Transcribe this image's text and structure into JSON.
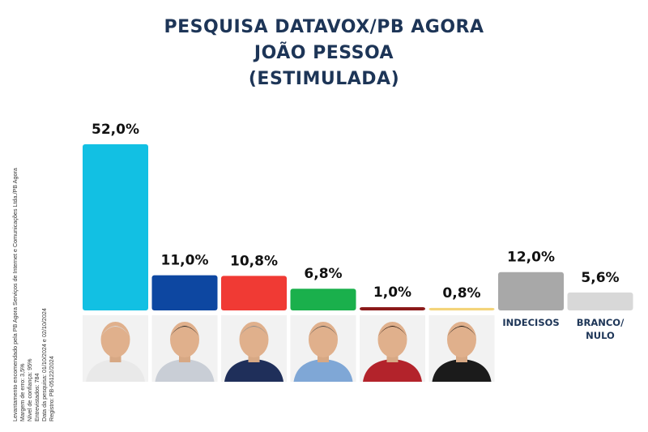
{
  "header": {
    "line1": "PESQUISA DATAVOX/PB AGORA",
    "line2": "JOÃO PESSOA",
    "line3": "(ESTIMULADA)"
  },
  "notes": [
    "Levantamento encomendado pela PB Agora Serviços de Internet e Comunicações Ltda./PB Agora",
    "Margem de erro: 3,5%",
    "Nível de confiança: 95%",
    "Entrevistados: 784",
    "Data da pesquisa: 01/10/2024 e 02/10/2024",
    "Registro: PB-05122/2024"
  ],
  "chart_data": {
    "type": "bar",
    "title": "PESQUISA DATAVOX/PB AGORA JOÃO PESSOA (ESTIMULADA)",
    "unit": "%",
    "ylim": [
      0,
      52
    ],
    "grid": false,
    "categories": [
      "",
      "",
      "",
      "",
      "",
      "",
      "INDECISOS",
      "BRANCO/NULO"
    ],
    "values": [
      52.0,
      11.0,
      10.8,
      6.8,
      1.0,
      0.8,
      12.0,
      5.6
    ],
    "value_labels": [
      "52,0%",
      "11,0%",
      "10,8%",
      "6,8%",
      "1,0%",
      "0,8%",
      "12,0%",
      "5,6%"
    ],
    "colors": [
      "#12c0e3",
      "#0d47a1",
      "#f03a34",
      "#1ab04c",
      "#8b1a1a",
      "#f4d47a",
      "#a8a8a8",
      "#d8d8d8"
    ],
    "category_labels_lines": [
      [],
      [],
      [],
      [],
      [],
      [],
      [
        "INDECISOS"
      ],
      [
        "BRANCO/",
        "NULO"
      ]
    ]
  }
}
